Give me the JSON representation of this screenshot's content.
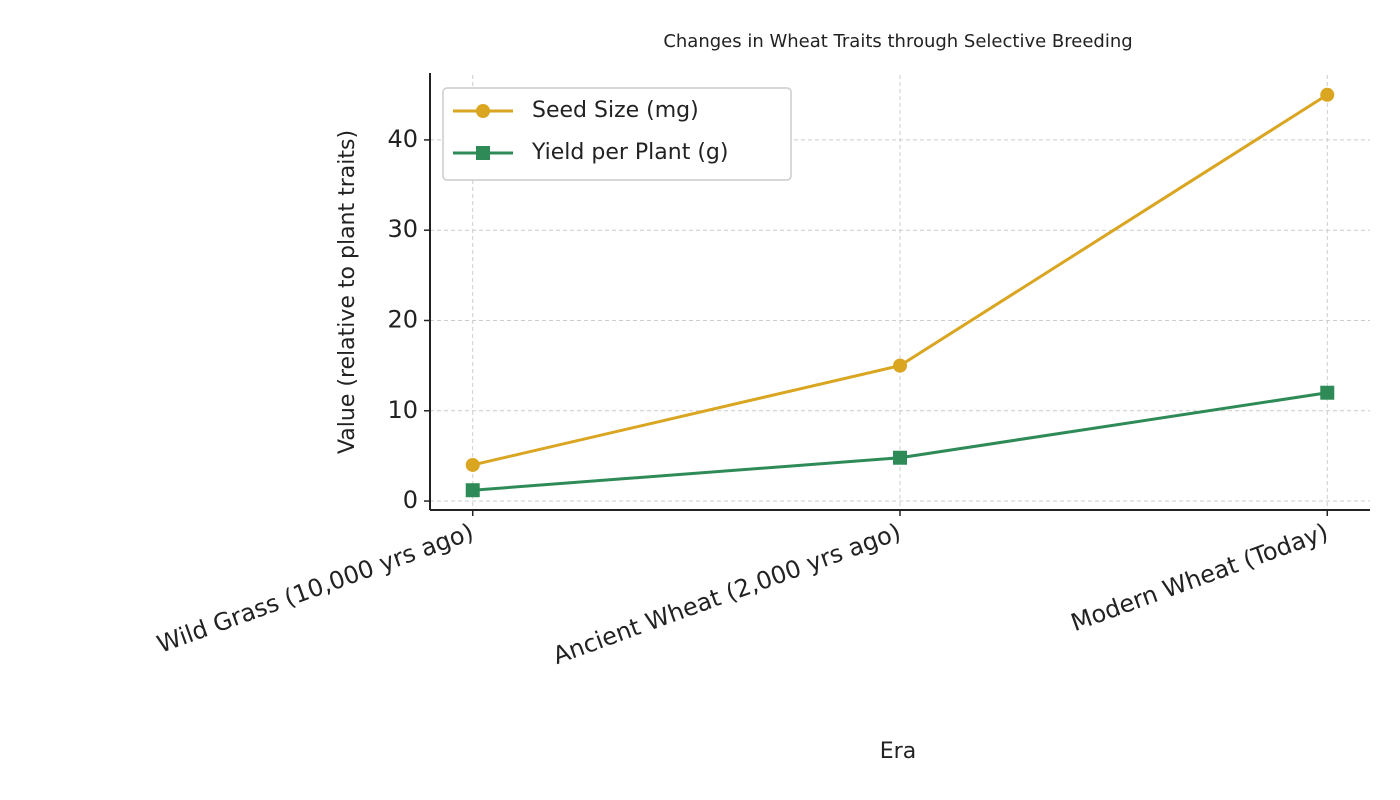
{
  "chart_data": {
    "type": "line",
    "title": "Changes in Wheat Traits through Selective Breeding",
    "x_label": "Era",
    "y_label": "Value (relative to plant traits)",
    "categories": [
      "Wild Grass (10,000 yrs ago)",
      "Ancient Wheat (2,000 yrs ago)",
      "Modern Wheat (Today)"
    ],
    "series": [
      {
        "name": "Seed Size (mg)",
        "color": "#daa520",
        "marker": "circle",
        "values": [
          4,
          15,
          45
        ]
      },
      {
        "name": "Yield per Plant (g)",
        "color": "#2e8b57",
        "marker": "square",
        "values": [
          1.2,
          4.8,
          12
        ]
      }
    ],
    "ylim": [
      -0.99,
      47.19
    ],
    "yticks": [
      0,
      10,
      20,
      30,
      40
    ],
    "grid": true,
    "legend": "upper left"
  }
}
